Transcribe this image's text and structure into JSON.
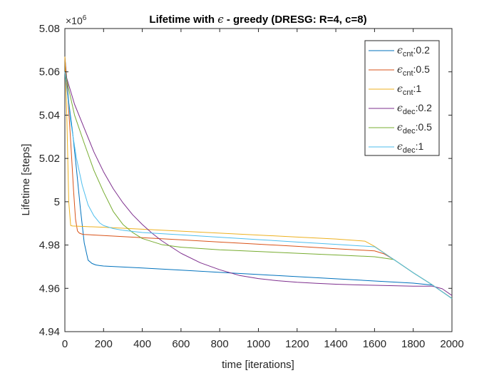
{
  "chart_data": {
    "type": "line",
    "title_prefix": "Lifetime with ",
    "title_epsilon": "ϵ",
    "title_suffix": " - greedy (DRESG: R=4, c=8)",
    "xlabel": "time [iterations]",
    "ylabel": "Lifetime [steps]",
    "y_exponent_label": {
      "base": "×10",
      "exp": "6"
    },
    "xlim": [
      0,
      2000
    ],
    "ylim": [
      4.94,
      5.08
    ],
    "xticks": [
      0,
      200,
      400,
      600,
      800,
      1000,
      1200,
      1400,
      1600,
      1800,
      2000
    ],
    "yticks": [
      4.94,
      4.96,
      4.98,
      5,
      5.02,
      5.04,
      5.06,
      5.08
    ],
    "ytick_labels": [
      "4.94",
      "4.96",
      "4.98",
      "5",
      "5.02",
      "5.04",
      "5.06",
      "5.08"
    ],
    "grid": false,
    "legend_position": "top-right",
    "series": [
      {
        "name": "ϵ_cnt:0.2",
        "eps": "ϵ",
        "sub": "cnt",
        "suffix": ":0.2",
        "color": "#0072BD",
        "x": [
          0,
          20,
          40,
          60,
          80,
          100,
          120,
          140,
          160,
          180,
          200,
          400,
          600,
          800,
          1000,
          1200,
          1400,
          1600,
          1800,
          1900,
          2000
        ],
        "y": [
          5.067,
          5.046,
          5.032,
          5.015,
          4.997,
          4.981,
          4.973,
          4.9715,
          4.9708,
          4.9705,
          4.9703,
          4.9694,
          4.9684,
          4.9674,
          4.9664,
          4.9654,
          4.9644,
          4.9634,
          4.9624,
          4.9615,
          4.9553
        ]
      },
      {
        "name": "ϵ_cnt:0.5",
        "eps": "ϵ",
        "sub": "cnt",
        "suffix": ":0.5",
        "color": "#D95319",
        "x": [
          0,
          15,
          30,
          45,
          55,
          65,
          75,
          90,
          100,
          200,
          400,
          600,
          800,
          1000,
          1200,
          1400,
          1600,
          1650,
          1700,
          1800,
          1900,
          2000
        ],
        "y": [
          5.067,
          5.049,
          5.028,
          5.005,
          4.992,
          4.9865,
          4.9855,
          4.985,
          4.9849,
          4.9844,
          4.9834,
          4.9824,
          4.9814,
          4.9804,
          4.9794,
          4.9783,
          4.9773,
          4.9759,
          4.9733,
          4.9672,
          4.9615,
          4.9554
        ]
      },
      {
        "name": "ϵ_cnt:1",
        "eps": "ϵ",
        "sub": "cnt",
        "suffix": ":1",
        "color": "#EDB120",
        "x": [
          0,
          10,
          20,
          30,
          40,
          200,
          400,
          600,
          800,
          1000,
          1200,
          1400,
          1550,
          1600,
          1700,
          1800,
          1900,
          2000
        ],
        "y": [
          5.067,
          5.04,
          5.0,
          4.989,
          4.9888,
          4.9882,
          4.9873,
          4.9864,
          4.9855,
          4.9846,
          4.9837,
          4.9828,
          4.9818,
          4.9794,
          4.9733,
          4.9672,
          4.9615,
          4.9553
        ]
      },
      {
        "name": "ϵ_dec:0.2",
        "eps": "ϵ",
        "sub": "dec",
        "suffix": ":0.2",
        "color": "#7E2F8E",
        "x": [
          0,
          50,
          100,
          150,
          200,
          250,
          300,
          350,
          400,
          450,
          500,
          600,
          700,
          800,
          900,
          1000,
          1100,
          1200,
          1300,
          1400,
          1500,
          1600,
          1700,
          1800,
          1900,
          1950,
          2000
        ],
        "y": [
          5.06,
          5.045,
          5.034,
          5.023,
          5.0138,
          5.006,
          4.9995,
          4.994,
          4.9895,
          4.9855,
          4.982,
          4.9762,
          4.9718,
          4.9686,
          4.966,
          4.9645,
          4.9635,
          4.9628,
          4.9623,
          4.9619,
          4.9616,
          4.9614,
          4.9612,
          4.961,
          4.961,
          4.9598,
          4.9567
        ]
      },
      {
        "name": "ϵ_dec:0.5",
        "eps": "ϵ",
        "sub": "dec",
        "suffix": ":0.5",
        "color": "#77AC30",
        "x": [
          0,
          50,
          100,
          150,
          200,
          250,
          300,
          350,
          400,
          500,
          600,
          800,
          1000,
          1200,
          1400,
          1600,
          1700,
          1800,
          1900,
          2000
        ],
        "y": [
          5.06,
          5.04,
          5.027,
          5.0145,
          5.0045,
          4.9955,
          4.9895,
          4.9858,
          4.983,
          4.9802,
          4.979,
          4.9778,
          4.977,
          4.9762,
          4.9754,
          4.9746,
          4.9733,
          4.9672,
          4.9615,
          4.9553
        ]
      },
      {
        "name": "ϵ_dec:1",
        "eps": "ϵ",
        "sub": "dec",
        "suffix": ":1",
        "color": "#4DBEEE",
        "x": [
          0,
          30,
          60,
          90,
          120,
          150,
          180,
          200,
          250,
          300,
          400,
          600,
          800,
          1000,
          1200,
          1400,
          1600,
          1700,
          1800,
          1900,
          2000
        ],
        "y": [
          5.06,
          5.037,
          5.02,
          5.0075,
          4.9985,
          4.9935,
          4.9902,
          4.989,
          4.9876,
          4.9868,
          4.9858,
          4.9847,
          4.9836,
          4.9825,
          4.9814,
          4.9803,
          4.9792,
          4.9733,
          4.9672,
          4.9615,
          4.9553
        ]
      }
    ]
  }
}
